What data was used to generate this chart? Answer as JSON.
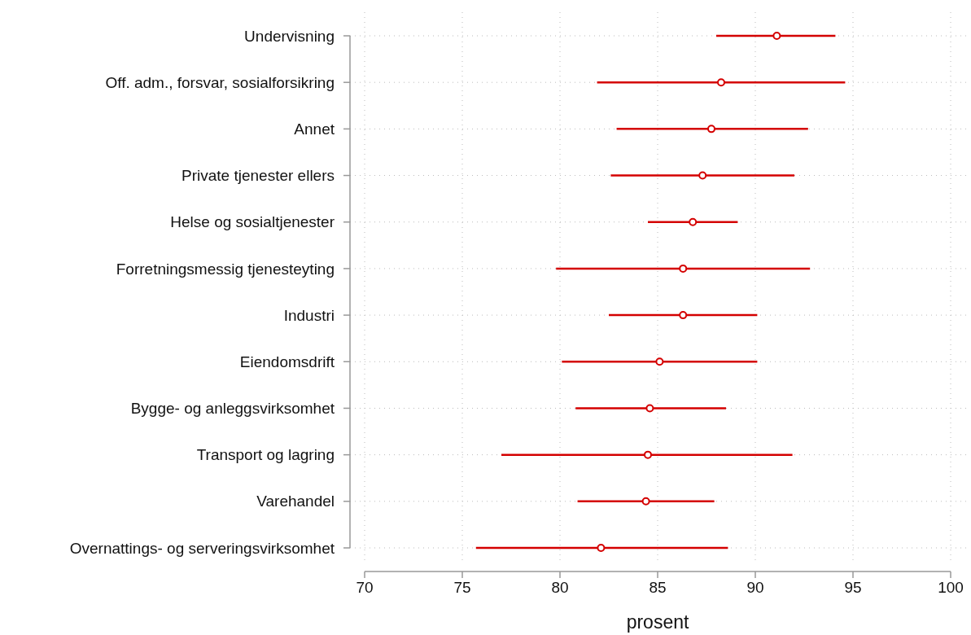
{
  "chart_data": {
    "type": "scatter",
    "orientation": "horizontal",
    "xlabel": "prosent",
    "categories": [
      "Undervisning",
      "Off. adm., forsvar, sosialforsikring",
      "Annet",
      "Private tjenester ellers",
      "Helse og sosialtjenester",
      "Forretningsmessig tjenesteyting",
      "Industri",
      "Eiendomsdrift",
      "Bygge- og anleggsvirksomhet",
      "Transport og lagring",
      "Varehandel",
      "Overnattings- og serveringsvirksomhet"
    ],
    "series": [
      {
        "color": "#d40000",
        "values": [
          91.1,
          88.25,
          87.75,
          87.3,
          86.8,
          86.3,
          86.3,
          85.1,
          84.6,
          84.5,
          84.4,
          82.1
        ],
        "errors": [
          [
            88.0,
            94.1
          ],
          [
            81.9,
            94.6
          ],
          [
            82.9,
            92.7
          ],
          [
            82.6,
            92.0
          ],
          [
            84.5,
            89.1
          ],
          [
            79.8,
            92.8
          ],
          [
            82.5,
            90.1
          ],
          [
            80.1,
            90.1
          ],
          [
            80.8,
            88.5
          ],
          [
            77.0,
            91.9
          ],
          [
            80.9,
            87.9
          ],
          [
            75.7,
            88.6
          ]
        ]
      }
    ],
    "xlim": [
      70,
      100
    ],
    "xticks": [
      70,
      75,
      80,
      85,
      90,
      95,
      100
    ],
    "grid": true,
    "marker": "circle",
    "line_style": "solid"
  }
}
